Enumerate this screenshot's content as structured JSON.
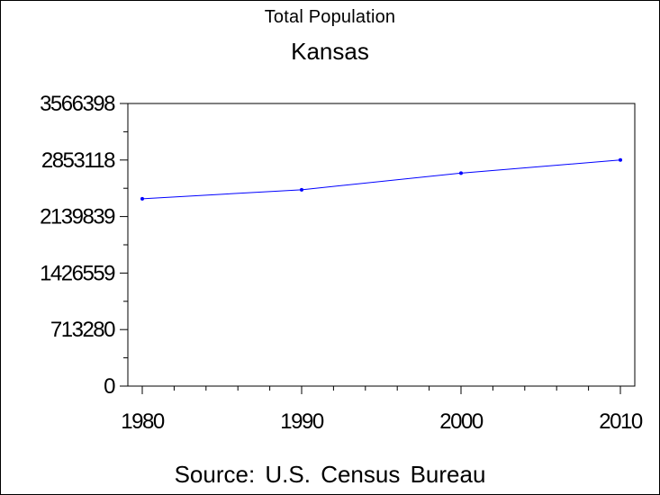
{
  "chart_data": {
    "type": "line",
    "title": "Total Population",
    "subtitle": "Kansas",
    "source": "Source: U.S. Census Bureau",
    "x": [
      1980,
      1990,
      2000,
      2010
    ],
    "x_tick_labels": [
      "1980",
      "1990",
      "2000",
      "2010"
    ],
    "xlim": [
      1980,
      2010
    ],
    "y_tick_values": [
      0,
      713280,
      1426559,
      2139839,
      2853118,
      3566398
    ],
    "y_tick_labels": [
      "0",
      "713280",
      "1426559",
      "2139839",
      "2853118",
      "3566398"
    ],
    "ylim": [
      0,
      3566398
    ],
    "series": [
      {
        "values": [
          2364000,
          2478000,
          2688000,
          2853118
        ],
        "color": "#0000ff"
      }
    ],
    "grid": false,
    "legend": "none"
  }
}
